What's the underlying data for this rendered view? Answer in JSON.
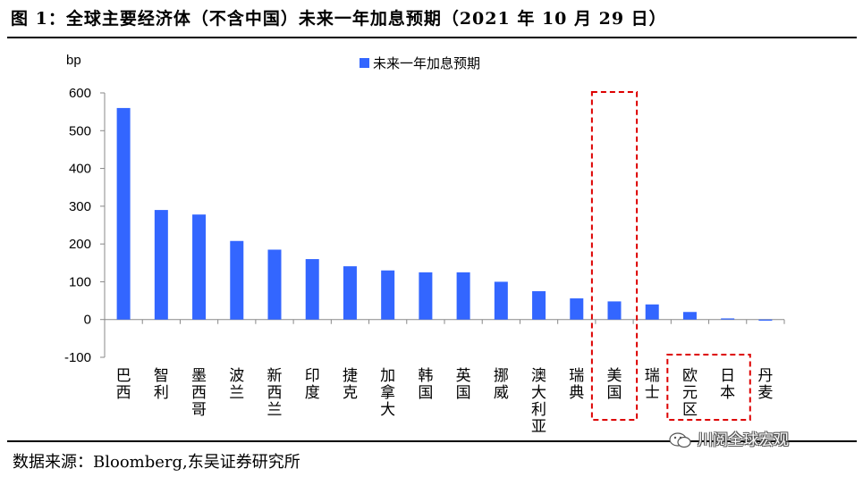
{
  "header": {
    "title": "图 1：全球主要经济体（不含中国）未来一年加息预期（2021 年 10 月 29 日）"
  },
  "footer": {
    "source": "数据来源：Bloomberg,东吴证券研究所",
    "watermark": "川阅全球宏观"
  },
  "chart_data": {
    "type": "bar",
    "title": "",
    "ylabel": "bp",
    "xlabel": "",
    "ylim": [
      -100,
      600
    ],
    "yticks": [
      600,
      500,
      400,
      300,
      200,
      100,
      0,
      -100
    ],
    "legend": {
      "position": "top-center"
    },
    "grid": false,
    "bar_color": "#3366ff",
    "highlight_color": "#dd0000",
    "highlight_boxes": [
      [
        "美国"
      ],
      [
        "欧元区",
        "日本"
      ]
    ],
    "categories": [
      "巴西",
      "智利",
      "墨西哥",
      "波兰",
      "新西兰",
      "印度",
      "捷克",
      "加拿大",
      "韩国",
      "英国",
      "挪威",
      "澳大利亚",
      "瑞典",
      "美国",
      "瑞士",
      "欧元区",
      "日本",
      "丹麦"
    ],
    "series": [
      {
        "name": "未来一年加息预期",
        "values": [
          560,
          290,
          278,
          208,
          185,
          160,
          141,
          130,
          125,
          125,
          100,
          75,
          56,
          48,
          40,
          20,
          3,
          -3
        ]
      }
    ]
  }
}
